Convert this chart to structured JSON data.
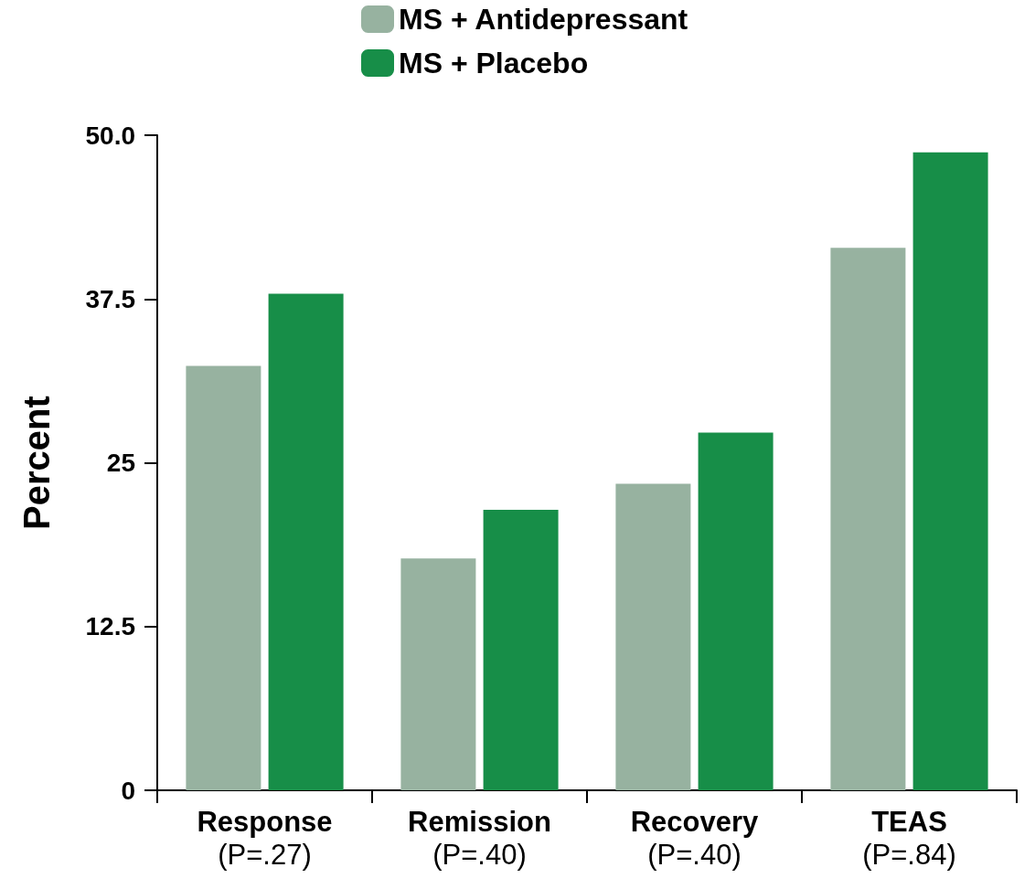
{
  "chart_data": {
    "type": "bar",
    "ylabel": "Percent",
    "categories": [
      "Response\n(P=.27)",
      "Remission\n(P=.40)",
      "Recovery\n(P=.40)",
      "TEAS\n(P=.84)"
    ],
    "series": [
      {
        "name": "MS + Antidepressant",
        "color": "#97b2a0",
        "values": [
          32.4,
          17.7,
          23.4,
          41.4
        ]
      },
      {
        "name": "MS + Placebo",
        "color": "#178e48",
        "values": [
          37.9,
          21.4,
          27.3,
          48.7
        ]
      }
    ],
    "ylim": [
      0,
      50
    ],
    "yticks": [
      0,
      12.5,
      25,
      37.5,
      {
        "value": 50,
        "label": "50.0"
      }
    ],
    "grid": false,
    "legend": "top"
  }
}
